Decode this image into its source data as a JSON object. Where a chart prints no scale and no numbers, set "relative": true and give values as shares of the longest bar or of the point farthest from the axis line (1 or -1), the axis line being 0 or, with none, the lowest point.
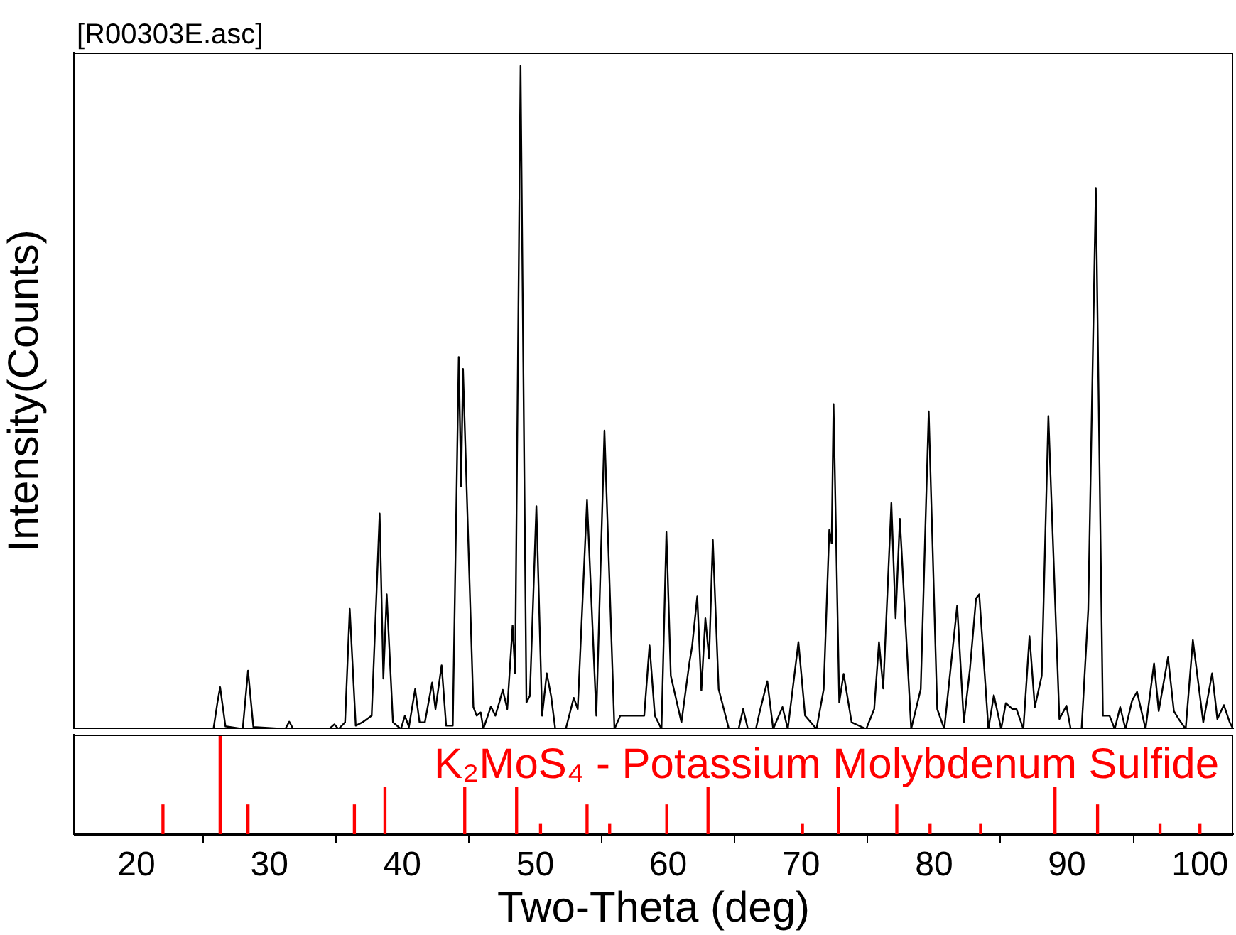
{
  "chart_data": [
    {
      "type": "line",
      "title": "[R00303E.asc]",
      "ylabel": "Intensity(Counts)",
      "relative": true,
      "color": "#000000",
      "marker": "none",
      "tick_labels": false,
      "xlim": [
        15.3,
        102.5
      ],
      "x": [
        15.3,
        25.8,
        26.1,
        26.3,
        26.7,
        28.0,
        28.4,
        28.8,
        31.2,
        31.5,
        31.8,
        34.5,
        34.9,
        35.2,
        35.7,
        36.05,
        36.5,
        37.0,
        37.7,
        38.3,
        38.58,
        38.83,
        39.3,
        39.9,
        40.2,
        40.5,
        40.97,
        41.3,
        41.7,
        42.25,
        42.5,
        42.96,
        43.3,
        43.8,
        44.25,
        44.43,
        44.57,
        45.35,
        45.6,
        45.9,
        46.1,
        46.67,
        47.0,
        47.3,
        47.56,
        47.9,
        48.3,
        48.49,
        48.9,
        49.34,
        49.6,
        50.09,
        50.52,
        50.87,
        51.2,
        51.51,
        52.3,
        52.9,
        53.2,
        53.9,
        54.6,
        55.21,
        55.96,
        56.4,
        56.8,
        57.3,
        57.8,
        58.2,
        58.6,
        59.0,
        59.5,
        59.87,
        60.2,
        61.0,
        61.6,
        61.8,
        62.19,
        62.5,
        62.8,
        63.08,
        63.36,
        63.8,
        64.57,
        65.3,
        65.64,
        66.0,
        66.6,
        66.9,
        67.46,
        67.9,
        68.6,
        69.0,
        69.8,
        70.3,
        71.16,
        71.7,
        72.12,
        72.3,
        72.44,
        72.87,
        73.2,
        73.8,
        74.9,
        75.5,
        75.86,
        76.18,
        76.79,
        77.11,
        77.43,
        78.28,
        79.0,
        79.6,
        80.24,
        80.77,
        81.74,
        82.24,
        82.7,
        83.16,
        83.4,
        84.09,
        84.5,
        85.05,
        85.4,
        85.9,
        86.2,
        86.72,
        87.18,
        87.58,
        88.1,
        88.6,
        89.43,
        89.96,
        90.28,
        91.1,
        91.6,
        92.17,
        92.7,
        93.2,
        93.59,
        94.0,
        94.4,
        94.9,
        95.27,
        95.91,
        96.55,
        96.9,
        97.6,
        98.04,
        98.4,
        98.93,
        99.47,
        100.25,
        100.92,
        101.31,
        101.8,
        102.24,
        102.5
      ],
      "values": [
        0,
        0,
        0.04,
        0.063,
        0.004,
        0,
        0.088,
        0.003,
        0,
        0.011,
        0,
        0,
        0.007,
        0,
        0.01,
        0.181,
        0.005,
        0.01,
        0.02,
        0.325,
        0.076,
        0.203,
        0.01,
        0,
        0.02,
        0.003,
        0.06,
        0.01,
        0.01,
        0.07,
        0.03,
        0.096,
        0.005,
        0.005,
        0.561,
        0.366,
        0.543,
        0.033,
        0.02,
        0.025,
        0,
        0.034,
        0.02,
        0.04,
        0.059,
        0.03,
        0.156,
        0.084,
        1.0,
        0.04,
        0.05,
        0.336,
        0.02,
        0.084,
        0.049,
        0,
        0,
        0.047,
        0.03,
        0.345,
        0.02,
        0.45,
        0,
        0.02,
        0.02,
        0.02,
        0.02,
        0.02,
        0.126,
        0.02,
        0,
        0.297,
        0.08,
        0.01,
        0.1,
        0.124,
        0.2,
        0.058,
        0.167,
        0.106,
        0.285,
        0.06,
        0,
        0,
        0.03,
        0,
        0,
        0.027,
        0.072,
        0,
        0.033,
        0,
        0.131,
        0.02,
        0,
        0.06,
        0.3,
        0.28,
        0.49,
        0.04,
        0.083,
        0.01,
        0,
        0.03,
        0.131,
        0.061,
        0.341,
        0.167,
        0.317,
        0,
        0.06,
        0.479,
        0.03,
        0,
        0.186,
        0.01,
        0.09,
        0.197,
        0.203,
        0,
        0.051,
        0,
        0.039,
        0.03,
        0.03,
        0,
        0.14,
        0.033,
        0.08,
        0.472,
        0.015,
        0.035,
        0,
        0,
        0.18,
        0.816,
        0.02,
        0.02,
        0,
        0.033,
        0,
        0.043,
        0.056,
        0,
        0.099,
        0.027,
        0.108,
        0.027,
        0.015,
        0,
        0.134,
        0.01,
        0.084,
        0.015,
        0.036,
        0.01,
        0
      ]
    },
    {
      "type": "bar",
      "xlabel": "Two-Theta (deg)",
      "relative": true,
      "tick_labels": "x",
      "xlim": [
        15.3,
        102.5
      ],
      "xticks": [
        20,
        30,
        40,
        50,
        60,
        70,
        80,
        90,
        100
      ],
      "x": [
        22.0,
        26.3,
        28.4,
        36.4,
        38.7,
        44.7,
        48.6,
        50.4,
        53.9,
        55.6,
        59.9,
        63.0,
        70.1,
        72.8,
        77.2,
        79.7,
        83.5,
        89.1,
        92.3,
        97.0,
        100.0
      ],
      "series": [
        {
          "name": "K₂MoS₄ - Potassium Molybdenum Sulfide",
          "color": "#ff0000",
          "values": [
            0.3,
            1,
            0.3,
            0.3,
            0.48,
            0.48,
            0.48,
            0.1,
            0.3,
            0.1,
            0.3,
            0.48,
            0.1,
            0.48,
            0.3,
            0.1,
            0.1,
            0.48,
            0.3,
            0.1,
            0.1
          ]
        }
      ]
    }
  ]
}
